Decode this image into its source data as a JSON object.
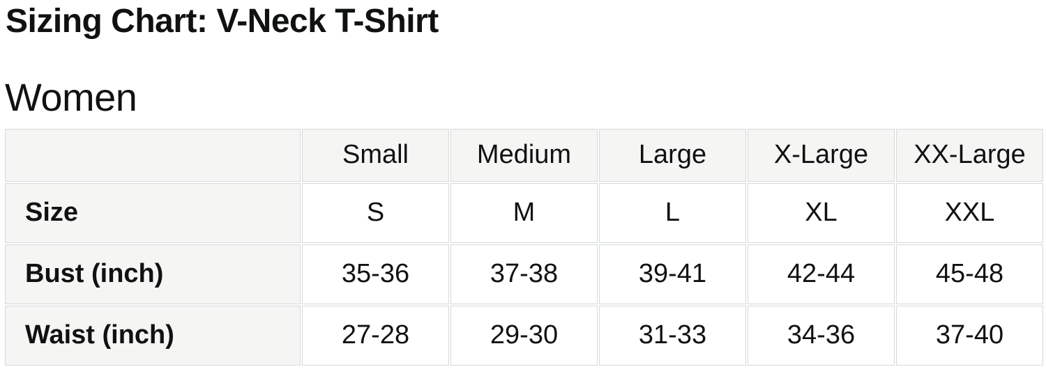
{
  "page": {
    "title": "Sizing Chart: V-Neck T-Shirt",
    "section_heading": "Women"
  },
  "chart_data": {
    "type": "table",
    "title": "Sizing Chart: V-Neck T-Shirt",
    "section": "Women",
    "columns": [
      "",
      "Small",
      "Medium",
      "Large",
      "X-Large",
      "XX-Large"
    ],
    "rows": [
      {
        "label": "Size",
        "values": [
          "S",
          "M",
          "L",
          "XL",
          "XXL"
        ]
      },
      {
        "label": "Bust (inch)",
        "values": [
          "35-36",
          "37-38",
          "39-41",
          "42-44",
          "45-48"
        ]
      },
      {
        "label": "Waist (inch)",
        "values": [
          "27-28",
          "29-30",
          "31-33",
          "34-36",
          "37-40"
        ]
      }
    ]
  },
  "colors": {
    "text": "#101212",
    "cell_border": "#d5d9d9",
    "header_bg": "#f5f5f4",
    "cell_bg": "#ffffff",
    "page_bg": "#ffffff"
  }
}
